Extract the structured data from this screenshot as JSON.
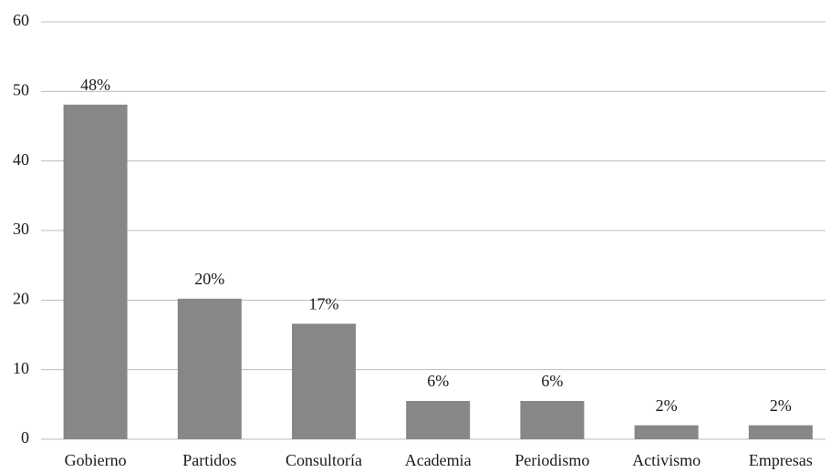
{
  "chart_data": {
    "type": "bar",
    "categories": [
      "Gobierno",
      "Partidos",
      "Consultoría",
      "Academia",
      "Periodismo",
      "Activismo",
      "Empresas"
    ],
    "values": [
      48.1,
      20.2,
      16.6,
      5.5,
      5.5,
      2.0,
      2.0
    ],
    "value_labels": [
      "48%",
      "20%",
      "17%",
      "6%",
      "6%",
      "2%",
      "2%"
    ],
    "color": "#878787",
    "ylim": [
      0,
      60
    ],
    "yticks": [
      0,
      10,
      20,
      30,
      40,
      50,
      60
    ],
    "grid": true
  }
}
